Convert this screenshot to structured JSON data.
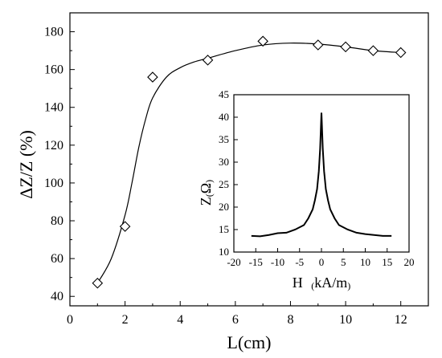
{
  "chart_data": [
    {
      "type": "scatter",
      "x": [
        1,
        2,
        3,
        5,
        7,
        9,
        10,
        11,
        12
      ],
      "series": [
        {
          "values": [
            47,
            77,
            156,
            165,
            175,
            173,
            172,
            170,
            169
          ],
          "marker": "diamond-open",
          "fit_line": true
        }
      ],
      "xlabel": "L(cm)",
      "ylabel": "ΔZ/Z (%)",
      "xlim": [
        0,
        13
      ],
      "ylim": [
        35,
        190
      ],
      "xticks": [
        "0",
        "2",
        "4",
        "6",
        "8",
        "10",
        "12"
      ],
      "yticks": [
        "40",
        "60",
        "80",
        "100",
        "120",
        "140",
        "160",
        "180"
      ],
      "fit_curve": {
        "x": [
          1,
          1.5,
          2,
          2.25,
          2.5,
          2.75,
          3,
          3.5,
          4,
          4.5,
          5,
          6,
          7,
          8,
          9,
          10,
          11,
          12
        ],
        "y": [
          47,
          60,
          83,
          100,
          119,
          134,
          145,
          156,
          161,
          164,
          166,
          170,
          173,
          174,
          173.5,
          172,
          170,
          169
        ]
      },
      "grid": false,
      "legend": "none"
    },
    {
      "type": "line",
      "inset": true,
      "x": [
        -16,
        -14,
        -12,
        -10,
        -8,
        -6,
        -4,
        -3,
        -2,
        -1.5,
        -1,
        -0.6,
        -0.3,
        0,
        0.3,
        0.6,
        1,
        1.5,
        2,
        3,
        4,
        6,
        8,
        10,
        12,
        14,
        16
      ],
      "series": [
        {
          "values": [
            13.6,
            13.5,
            13.8,
            14.2,
            14.3,
            15.0,
            16.0,
            17.5,
            19.5,
            21.5,
            24.0,
            28.0,
            33.0,
            41.0,
            33.0,
            28.0,
            24.0,
            21.5,
            19.5,
            17.5,
            16.0,
            15.0,
            14.3,
            14.0,
            13.8,
            13.6,
            13.6
          ]
        }
      ],
      "xlabel": "H",
      "xlabel_unit": "kA/m",
      "ylabel": "Z",
      "ylabel_unit": "Ω",
      "xlim": [
        -20,
        20
      ],
      "ylim": [
        10,
        45
      ],
      "xticks": [
        "-20",
        "-15",
        "-10",
        "-5",
        "0",
        "5",
        "10",
        "15",
        "20"
      ],
      "yticks": [
        "10",
        "15",
        "20",
        "25",
        "30",
        "35",
        "40",
        "45"
      ],
      "grid": false,
      "legend": "none"
    }
  ]
}
